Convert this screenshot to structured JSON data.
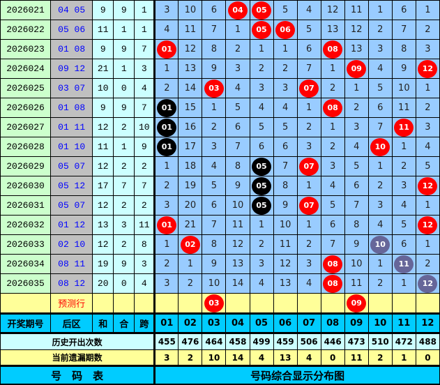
{
  "colors": {
    "hit": "#ff0000",
    "repeat": "#000000",
    "edge": "#666699",
    "grid": "#99ccff"
  },
  "rows": [
    {
      "period": "2026021",
      "back": "04  05",
      "sum": "9",
      "he": "9",
      "kua": "1",
      "cells": [
        "3",
        "10",
        "6",
        "04",
        "05",
        "5",
        "4",
        "12",
        "11",
        "1",
        "6",
        "1"
      ],
      "hits": [
        3,
        4
      ],
      "repeat": [],
      "edge": []
    },
    {
      "period": "2026022",
      "back": "05  06",
      "sum": "11",
      "he": "1",
      "kua": "1",
      "cells": [
        "4",
        "11",
        "7",
        "1",
        "05",
        "06",
        "5",
        "13",
        "12",
        "2",
        "7",
        "2"
      ],
      "hits": [
        4,
        5
      ],
      "repeat": [],
      "edge": []
    },
    {
      "period": "2026023",
      "back": "01  08",
      "sum": "9",
      "he": "9",
      "kua": "7",
      "cells": [
        "01",
        "12",
        "8",
        "2",
        "1",
        "1",
        "6",
        "08",
        "13",
        "3",
        "8",
        "3"
      ],
      "hits": [
        0,
        7
      ],
      "repeat": [],
      "edge": []
    },
    {
      "period": "2026024",
      "back": "09  12",
      "sum": "21",
      "he": "1",
      "kua": "3",
      "cells": [
        "1",
        "13",
        "9",
        "3",
        "2",
        "2",
        "7",
        "1",
        "09",
        "4",
        "9",
        "12"
      ],
      "hits": [
        8,
        11
      ],
      "repeat": [],
      "edge": []
    },
    {
      "period": "2026025",
      "back": "03  07",
      "sum": "10",
      "he": "0",
      "kua": "4",
      "cells": [
        "2",
        "14",
        "03",
        "4",
        "3",
        "3",
        "07",
        "2",
        "1",
        "5",
        "10",
        "1"
      ],
      "hits": [
        2,
        6
      ],
      "repeat": [],
      "edge": []
    },
    {
      "period": "2026026",
      "back": "01  08",
      "sum": "9",
      "he": "9",
      "kua": "7",
      "cells": [
        "01",
        "15",
        "1",
        "5",
        "4",
        "4",
        "1",
        "08",
        "2",
        "6",
        "11",
        "2"
      ],
      "hits": [
        0,
        7
      ],
      "repeat": [
        0
      ],
      "edge": []
    },
    {
      "period": "2026027",
      "back": "01  11",
      "sum": "12",
      "he": "2",
      "kua": "10",
      "cells": [
        "01",
        "16",
        "2",
        "6",
        "5",
        "5",
        "2",
        "1",
        "3",
        "7",
        "11",
        "3"
      ],
      "hits": [
        0,
        10
      ],
      "repeat": [
        0
      ],
      "edge": []
    },
    {
      "period": "2026028",
      "back": "01  10",
      "sum": "11",
      "he": "1",
      "kua": "9",
      "cells": [
        "01",
        "17",
        "3",
        "7",
        "6",
        "6",
        "3",
        "2",
        "4",
        "10",
        "1",
        "4"
      ],
      "hits": [
        0,
        9
      ],
      "repeat": [
        0
      ],
      "edge": []
    },
    {
      "period": "2026029",
      "back": "05  07",
      "sum": "12",
      "he": "2",
      "kua": "2",
      "cells": [
        "1",
        "18",
        "4",
        "8",
        "05",
        "7",
        "07",
        "3",
        "5",
        "1",
        "2",
        "5"
      ],
      "hits": [
        4,
        6
      ],
      "repeat": [
        4
      ],
      "edge": []
    },
    {
      "period": "2026030",
      "back": "05  12",
      "sum": "17",
      "he": "7",
      "kua": "7",
      "cells": [
        "2",
        "19",
        "5",
        "9",
        "05",
        "8",
        "1",
        "4",
        "6",
        "2",
        "3",
        "12"
      ],
      "hits": [
        4,
        11
      ],
      "repeat": [
        4
      ],
      "edge": []
    },
    {
      "period": "2026031",
      "back": "05  07",
      "sum": "12",
      "he": "2",
      "kua": "2",
      "cells": [
        "3",
        "20",
        "6",
        "10",
        "05",
        "9",
        "07",
        "5",
        "7",
        "3",
        "4",
        "1"
      ],
      "hits": [
        4,
        6
      ],
      "repeat": [
        4
      ],
      "edge": []
    },
    {
      "period": "2026032",
      "back": "01  12",
      "sum": "13",
      "he": "3",
      "kua": "11",
      "cells": [
        "01",
        "21",
        "7",
        "11",
        "1",
        "10",
        "1",
        "6",
        "8",
        "4",
        "5",
        "12"
      ],
      "hits": [
        0,
        11
      ],
      "repeat": [],
      "edge": []
    },
    {
      "period": "2026033",
      "back": "02  10",
      "sum": "12",
      "he": "2",
      "kua": "8",
      "cells": [
        "1",
        "02",
        "8",
        "12",
        "2",
        "11",
        "2",
        "7",
        "9",
        "10",
        "6",
        "1"
      ],
      "hits": [
        1,
        9
      ],
      "repeat": [],
      "edge": [
        9
      ]
    },
    {
      "period": "2026034",
      "back": "08  11",
      "sum": "19",
      "he": "9",
      "kua": "3",
      "cells": [
        "2",
        "1",
        "9",
        "13",
        "3",
        "12",
        "3",
        "08",
        "10",
        "1",
        "11",
        "2"
      ],
      "hits": [
        7,
        10
      ],
      "repeat": [],
      "edge": [
        10
      ]
    },
    {
      "period": "2026035",
      "back": "08  12",
      "sum": "20",
      "he": "0",
      "kua": "4",
      "cells": [
        "3",
        "2",
        "10",
        "14",
        "4",
        "13",
        "4",
        "08",
        "11",
        "2",
        "1",
        "12"
      ],
      "hits": [
        7,
        11
      ],
      "repeat": [],
      "edge": [
        11
      ]
    }
  ],
  "prediction": {
    "label": "预测行",
    "cells": [
      "",
      "",
      "03",
      "",
      "",
      "",
      "",
      "",
      "09",
      "",
      "",
      ""
    ]
  },
  "header": {
    "period": "开奖期号",
    "back": "后区",
    "sum": "和",
    "he": "合",
    "kua": "跨",
    "numbers": [
      "01",
      "02",
      "03",
      "04",
      "05",
      "06",
      "07",
      "08",
      "09",
      "10",
      "11",
      "12"
    ]
  },
  "history": {
    "label": "历史开出次数",
    "values": [
      "455",
      "476",
      "464",
      "458",
      "499",
      "459",
      "506",
      "446",
      "473",
      "510",
      "472",
      "488"
    ]
  },
  "omission": {
    "label": "当前遗漏期数",
    "values": [
      "3",
      "2",
      "10",
      "14",
      "4",
      "13",
      "4",
      "0",
      "11",
      "2",
      "1",
      "0"
    ]
  },
  "footer": {
    "left": "号　码　表",
    "right": "号码综合显示分布图"
  }
}
